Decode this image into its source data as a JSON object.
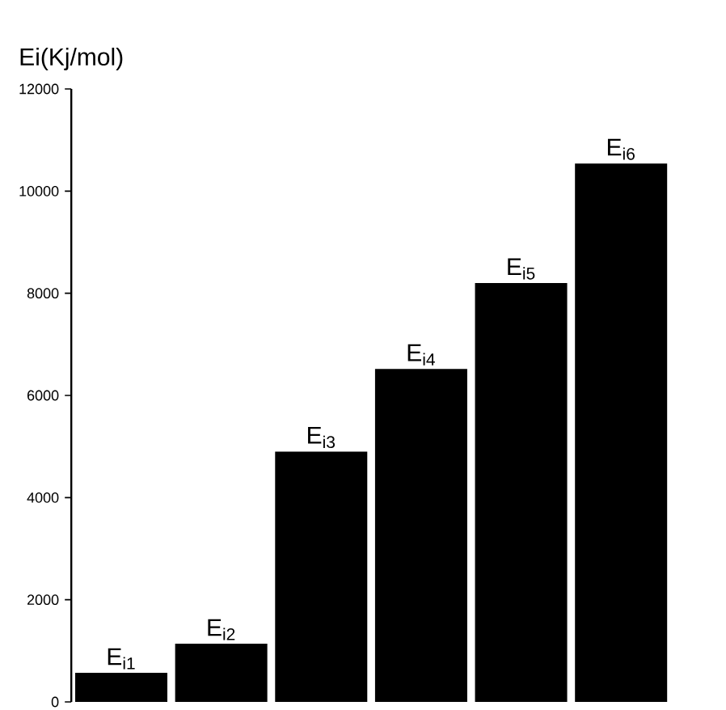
{
  "chart_data": {
    "type": "bar",
    "ylabel": "Ei(Kj/mol)",
    "categories": [
      "E$_{i1}$",
      "E$_{i2}$",
      "E$_{i3}$",
      "E$_{i4}$",
      "E$_{i5}$",
      "E$_{i6}$"
    ],
    "values": [
      570,
      1140,
      4900,
      6520,
      8200,
      10540
    ],
    "color": "#000000",
    "ylim": [
      0,
      12000
    ],
    "yticks": [
      0,
      2000,
      4000,
      6000,
      8000,
      10000,
      12000
    ],
    "grid": false
  }
}
